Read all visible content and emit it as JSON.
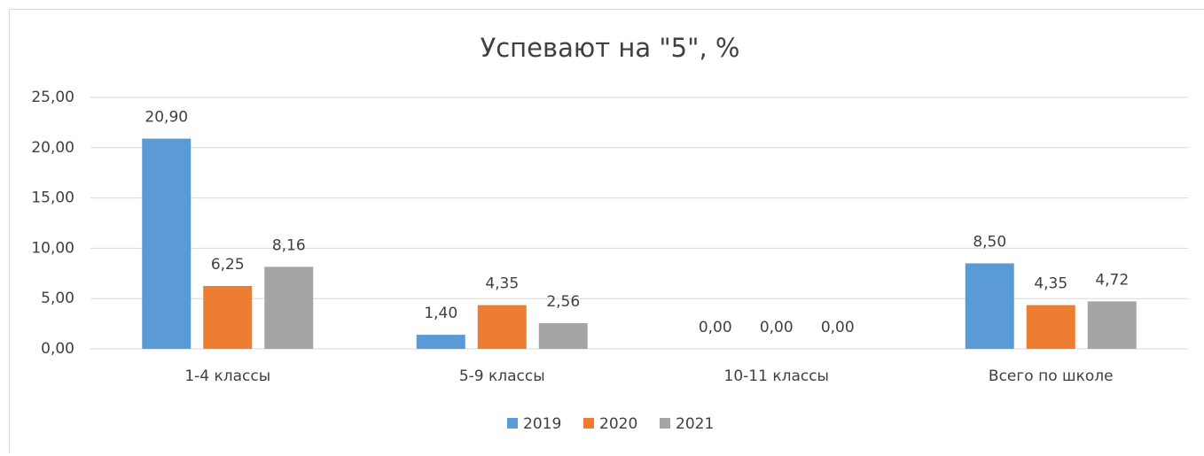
{
  "chart_data": {
    "type": "bar",
    "title": "Успевают на \"5\", %",
    "categories": [
      "1-4 классы",
      "5-9 классы",
      "10-11 классы",
      "Всего по школе"
    ],
    "series": [
      {
        "name": "2019",
        "color": "#5b9bd5",
        "values": [
          20.9,
          1.4,
          0,
          8.5
        ],
        "value_labels": [
          "20,90",
          "1,40",
          "0,00",
          "8,50"
        ]
      },
      {
        "name": "2020",
        "color": "#ed7d31",
        "values": [
          6.25,
          4.35,
          0,
          4.35
        ],
        "value_labels": [
          "6,25",
          "4,35",
          "0,00",
          "4,35"
        ]
      },
      {
        "name": "2021",
        "color": "#a5a5a5",
        "values": [
          8.16,
          2.56,
          0,
          4.72
        ],
        "value_labels": [
          "8,16",
          "2,56",
          "0,00",
          "4,72"
        ]
      }
    ],
    "ylim": [
      0,
      25
    ],
    "yticks": [
      {
        "value": 0,
        "label": "0,00"
      },
      {
        "value": 5,
        "label": "5,00"
      },
      {
        "value": 10,
        "label": "10,00"
      },
      {
        "value": 15,
        "label": "15,00"
      },
      {
        "value": 20,
        "label": "20,00"
      },
      {
        "value": 25,
        "label": "25,00"
      }
    ],
    "grid": true,
    "legend": "bottom"
  }
}
